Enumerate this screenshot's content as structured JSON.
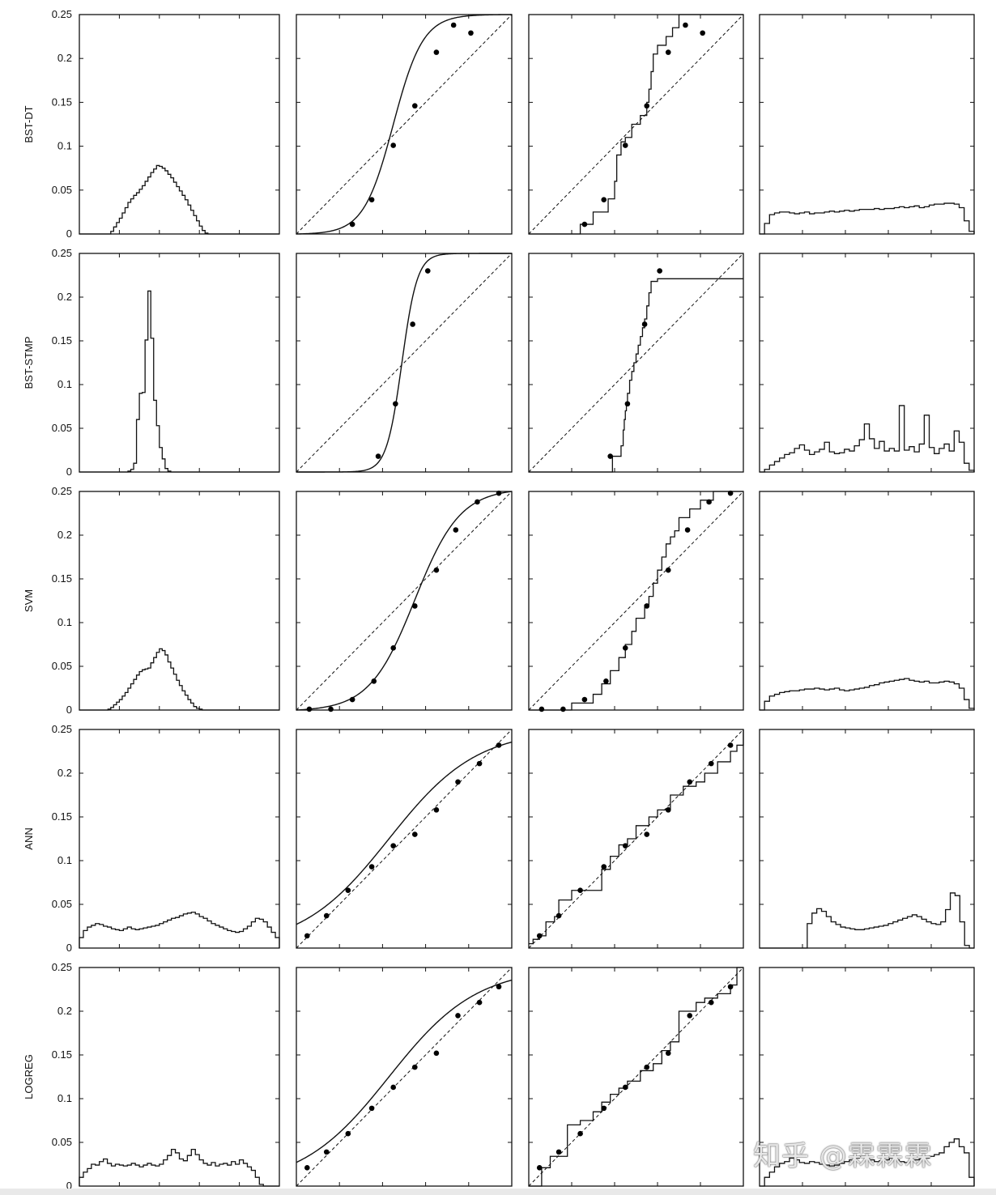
{
  "chart_data": {
    "type": "grid_of_plots",
    "rows": [
      "BST-DT",
      "BST-STMP",
      "SVM",
      "ANN",
      "LOGREG"
    ],
    "yticks": [
      "0",
      "0.05",
      "0.1",
      "0.15",
      "0.2",
      "0.25"
    ],
    "ylim": [
      0,
      0.25
    ],
    "xlim": [
      0,
      1
    ],
    "panels": {
      "BST-DT": {
        "histogram": [
          0,
          0,
          0,
          0,
          0,
          0,
          0,
          0,
          0,
          0,
          0,
          0.003,
          0.008,
          0.013,
          0.018,
          0.024,
          0.03,
          0.036,
          0.04,
          0.044,
          0.047,
          0.051,
          0.055,
          0.06,
          0.065,
          0.07,
          0.074,
          0.078,
          0.077,
          0.075,
          0.072,
          0.068,
          0.064,
          0.059,
          0.054,
          0.049,
          0.044,
          0.039,
          0.033,
          0.027,
          0.021,
          0.015,
          0.009,
          0.004,
          0.001,
          0,
          0,
          0,
          0,
          0,
          0,
          0,
          0,
          0,
          0,
          0,
          0,
          0,
          0,
          0,
          0,
          0,
          0,
          0,
          0,
          0,
          0,
          0,
          0,
          0
        ],
        "points_x": [
          0.26,
          0.35,
          0.45,
          0.55,
          0.65,
          0.73,
          0.81
        ],
        "points_y": [
          0.011,
          0.039,
          0.101,
          0.146,
          0.207,
          0.238,
          0.229
        ],
        "sigmoid": {
          "a": 14.5,
          "b": 0.45
        },
        "isotonic": {
          "x": [
            0,
            0.23,
            0.24,
            0.3,
            0.37,
            0.4,
            0.41,
            0.43,
            0.45,
            0.48,
            0.52,
            0.55,
            0.56,
            0.57,
            0.58,
            0.6,
            0.64,
            0.67,
            0.7,
            0.74,
            1.0
          ],
          "y": [
            0,
            0.0,
            0.011,
            0.025,
            0.04,
            0.06,
            0.09,
            0.105,
            0.11,
            0.125,
            0.135,
            0.15,
            0.165,
            0.185,
            0.205,
            0.215,
            0.225,
            0.235,
            0.25,
            0.25,
            0.25
          ]
        },
        "reliability": [
          0,
          0.012,
          0.022,
          0.024,
          0.025,
          0.025,
          0.024,
          0.023,
          0.024,
          0.025,
          0.023,
          0.024,
          0.024,
          0.025,
          0.026,
          0.025,
          0.026,
          0.027,
          0.026,
          0.027,
          0.028,
          0.028,
          0.028,
          0.029,
          0.028,
          0.029,
          0.029,
          0.03,
          0.031,
          0.03,
          0.031,
          0.032,
          0.03,
          0.031,
          0.033,
          0.034,
          0.034,
          0.035,
          0.035,
          0.034,
          0.03,
          0.015,
          0.003
        ]
      },
      "BST-STMP": {
        "histogram": [
          0,
          0,
          0,
          0,
          0,
          0,
          0,
          0,
          0,
          0,
          0,
          0,
          0,
          0,
          0,
          0,
          0,
          0.001,
          0.003,
          0.01,
          0.06,
          0.09,
          0.091,
          0.151,
          0.207,
          0.153,
          0.082,
          0.053,
          0.028,
          0.015,
          0.004,
          0.001,
          0,
          0,
          0,
          0,
          0,
          0,
          0,
          0,
          0,
          0,
          0,
          0,
          0,
          0,
          0,
          0,
          0,
          0,
          0,
          0,
          0,
          0,
          0,
          0,
          0,
          0,
          0,
          0,
          0,
          0,
          0,
          0,
          0,
          0,
          0,
          0,
          0,
          0
        ],
        "points_x": [
          0.38,
          0.46,
          0.54,
          0.61
        ],
        "points_y": [
          0.018,
          0.078,
          0.169,
          0.23
        ],
        "sigmoid": {
          "a": 28,
          "b": 0.49
        },
        "isotonic": {
          "x": [
            0,
            0.38,
            0.39,
            0.43,
            0.44,
            0.445,
            0.45,
            0.455,
            0.46,
            0.47,
            0.48,
            0.49,
            0.5,
            0.51,
            0.52,
            0.53,
            0.54,
            0.55,
            0.56,
            0.57,
            0.6,
            1.0
          ],
          "y": [
            0,
            0,
            0.018,
            0.03,
            0.048,
            0.06,
            0.07,
            0.08,
            0.09,
            0.105,
            0.115,
            0.125,
            0.135,
            0.145,
            0.155,
            0.165,
            0.175,
            0.19,
            0.205,
            0.218,
            0.221,
            0.221
          ]
        },
        "reliability": [
          0,
          0.003,
          0.008,
          0.012,
          0.016,
          0.02,
          0.022,
          0.027,
          0.031,
          0.025,
          0.02,
          0.023,
          0.026,
          0.034,
          0.023,
          0.021,
          0.022,
          0.026,
          0.024,
          0.03,
          0.037,
          0.055,
          0.038,
          0.027,
          0.035,
          0.024,
          0.027,
          0.024,
          0.076,
          0.025,
          0.029,
          0.023,
          0.032,
          0.065,
          0.028,
          0.021,
          0.027,
          0.032,
          0.024,
          0.047,
          0.034,
          0.01,
          0.002
        ]
      },
      "SVM": {
        "histogram": [
          0,
          0,
          0,
          0,
          0,
          0,
          0,
          0,
          0,
          0,
          0.001,
          0.003,
          0.006,
          0.009,
          0.012,
          0.016,
          0.02,
          0.025,
          0.03,
          0.035,
          0.04,
          0.044,
          0.046,
          0.047,
          0.048,
          0.054,
          0.06,
          0.066,
          0.07,
          0.068,
          0.063,
          0.055,
          0.048,
          0.041,
          0.034,
          0.028,
          0.022,
          0.017,
          0.012,
          0.008,
          0.004,
          0.002,
          0.001,
          0,
          0,
          0,
          0,
          0,
          0,
          0,
          0,
          0,
          0,
          0,
          0,
          0,
          0,
          0,
          0,
          0,
          0,
          0,
          0,
          0,
          0,
          0,
          0,
          0,
          0,
          0
        ],
        "points_x": [
          0.06,
          0.16,
          0.26,
          0.36,
          0.45,
          0.55,
          0.65,
          0.74,
          0.84,
          0.94
        ],
        "points_y": [
          0.001,
          0.001,
          0.012,
          0.033,
          0.071,
          0.119,
          0.16,
          0.206,
          0.238,
          0.248
        ],
        "sigmoid": {
          "a": 9.5,
          "b": 0.55
        },
        "isotonic": {
          "x": [
            0,
            0.15,
            0.2,
            0.3,
            0.34,
            0.38,
            0.42,
            0.45,
            0.48,
            0.5,
            0.54,
            0.56,
            0.58,
            0.6,
            0.62,
            0.64,
            0.66,
            0.68,
            0.7,
            0.75,
            0.8,
            0.86,
            0.9,
            1.0
          ],
          "y": [
            0,
            0,
            0.008,
            0.018,
            0.03,
            0.045,
            0.06,
            0.075,
            0.09,
            0.105,
            0.12,
            0.13,
            0.145,
            0.16,
            0.175,
            0.19,
            0.198,
            0.205,
            0.22,
            0.23,
            0.24,
            0.25,
            0.25,
            0.25
          ]
        },
        "reliability": [
          0,
          0.01,
          0.016,
          0.018,
          0.02,
          0.021,
          0.022,
          0.022,
          0.023,
          0.024,
          0.024,
          0.025,
          0.024,
          0.023,
          0.024,
          0.025,
          0.023,
          0.022,
          0.023,
          0.024,
          0.025,
          0.026,
          0.028,
          0.029,
          0.031,
          0.032,
          0.033,
          0.034,
          0.035,
          0.036,
          0.034,
          0.033,
          0.032,
          0.033,
          0.031,
          0.031,
          0.032,
          0.033,
          0.032,
          0.03,
          0.025,
          0.012,
          0.002
        ]
      },
      "ANN": {
        "histogram": [
          0.012,
          0.02,
          0.024,
          0.026,
          0.028,
          0.027,
          0.025,
          0.024,
          0.022,
          0.021,
          0.02,
          0.022,
          0.024,
          0.022,
          0.021,
          0.022,
          0.023,
          0.024,
          0.025,
          0.026,
          0.028,
          0.03,
          0.032,
          0.034,
          0.035,
          0.037,
          0.039,
          0.04,
          0.041,
          0.039,
          0.036,
          0.034,
          0.031,
          0.028,
          0.026,
          0.024,
          0.022,
          0.02,
          0.019,
          0.018,
          0.019,
          0.022,
          0.025,
          0.03,
          0.034,
          0.033,
          0.03,
          0.024,
          0.018,
          0.012
        ],
        "points_x": [
          0.05,
          0.14,
          0.24,
          0.35,
          0.45,
          0.55,
          0.65,
          0.75,
          0.85,
          0.94
        ],
        "points_y": [
          0.014,
          0.037,
          0.066,
          0.093,
          0.117,
          0.13,
          0.158,
          0.19,
          0.211,
          0.232
        ],
        "sigmoid": {
          "a": 4.9,
          "b": 0.43,
          "ymax": 0.25
        },
        "isotonic": {
          "x": [
            0,
            0.02,
            0.05,
            0.08,
            0.12,
            0.14,
            0.2,
            0.26,
            0.34,
            0.38,
            0.42,
            0.46,
            0.5,
            0.56,
            0.6,
            0.66,
            0.72,
            0.78,
            0.82,
            0.88,
            0.94,
            0.97,
            1.0
          ],
          "y": [
            0.005,
            0.01,
            0.014,
            0.03,
            0.036,
            0.055,
            0.066,
            0.066,
            0.09,
            0.105,
            0.118,
            0.125,
            0.14,
            0.15,
            0.158,
            0.175,
            0.185,
            0.19,
            0.2,
            0.213,
            0.225,
            0.232,
            0.25
          ]
        },
        "reliability": [
          0,
          0,
          0,
          0,
          0,
          0,
          0,
          0,
          0,
          0,
          0.028,
          0.04,
          0.045,
          0.042,
          0.036,
          0.03,
          0.027,
          0.024,
          0.023,
          0.022,
          0.021,
          0.021,
          0.022,
          0.023,
          0.024,
          0.025,
          0.026,
          0.028,
          0.03,
          0.032,
          0.034,
          0.036,
          0.038,
          0.036,
          0.033,
          0.03,
          0.028,
          0.027,
          0.03,
          0.044,
          0.063,
          0.06,
          0.03,
          0.003,
          0
        ]
      },
      "LOGREG": {
        "histogram": [
          0.01,
          0.016,
          0.02,
          0.025,
          0.024,
          0.028,
          0.031,
          0.026,
          0.023,
          0.025,
          0.024,
          0.023,
          0.024,
          0.026,
          0.024,
          0.022,
          0.024,
          0.026,
          0.024,
          0.023,
          0.025,
          0.03,
          0.035,
          0.042,
          0.038,
          0.031,
          0.029,
          0.035,
          0.042,
          0.036,
          0.03,
          0.026,
          0.024,
          0.027,
          0.023,
          0.025,
          0.026,
          0.024,
          0.028,
          0.025,
          0.03,
          0.026,
          0.022,
          0.018,
          0.01,
          0.002,
          0,
          0,
          0,
          0
        ],
        "points_x": [
          0.05,
          0.14,
          0.24,
          0.35,
          0.45,
          0.55,
          0.65,
          0.75,
          0.85,
          0.94
        ],
        "points_y": [
          0.021,
          0.039,
          0.06,
          0.089,
          0.113,
          0.136,
          0.152,
          0.195,
          0.21,
          0.228
        ],
        "sigmoid": {
          "a": 4.9,
          "b": 0.43,
          "ymax": 0.25
        },
        "isotonic": {
          "x": [
            0,
            0.06,
            0.1,
            0.18,
            0.24,
            0.3,
            0.34,
            0.38,
            0.42,
            0.46,
            0.52,
            0.58,
            0.62,
            0.66,
            0.7,
            0.78,
            0.82,
            0.88,
            0.94,
            0.97,
            1.0
          ],
          "y": [
            0.0,
            0.021,
            0.034,
            0.07,
            0.075,
            0.085,
            0.096,
            0.105,
            0.112,
            0.12,
            0.132,
            0.14,
            0.155,
            0.165,
            0.2,
            0.21,
            0.215,
            0.22,
            0.23,
            0.25,
            0.25
          ]
        },
        "reliability": [
          0,
          0.01,
          0.016,
          0.022,
          0.026,
          0.028,
          0.032,
          0.03,
          0.027,
          0.026,
          0.028,
          0.027,
          0.025,
          0.024,
          0.023,
          0.024,
          0.026,
          0.028,
          0.03,
          0.032,
          0.034,
          0.033,
          0.03,
          0.028,
          0.029,
          0.03,
          0.032,
          0.03,
          0.028,
          0.027,
          0.029,
          0.03,
          0.031,
          0.032,
          0.034,
          0.036,
          0.038,
          0.045,
          0.05,
          0.054,
          0.045,
          0.038,
          0.01
        ]
      }
    }
  },
  "watermark": "知乎 @霖霖霖"
}
